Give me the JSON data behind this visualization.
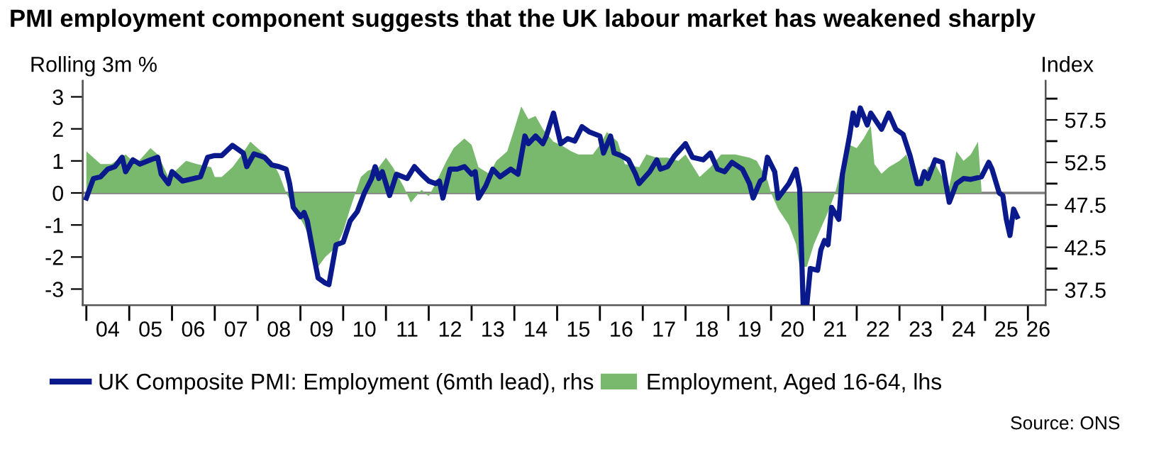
{
  "chart_data": {
    "type": "area",
    "title": "PMI employment component suggests that the UK labour market has weakened sharply",
    "ylabel": "Rolling 3m %",
    "y2label": "Index",
    "annotations": [
      "Source: ONS"
    ],
    "legend": "bottom",
    "grid": false,
    "ref_lines": [
      {
        "axis": "y",
        "value": 0,
        "color": "#808080"
      }
    ],
    "xlim": [
      "2003-12",
      "2026-06"
    ],
    "xticks": [
      {
        "value": "2004-01",
        "label": null
      },
      {
        "value": "2005-01",
        "label": null
      },
      {
        "value": "2006-01",
        "label": null
      },
      {
        "value": "2007-01",
        "label": null
      },
      {
        "value": "2008-01",
        "label": null
      },
      {
        "value": "2009-01",
        "label": null
      },
      {
        "value": "2010-01",
        "label": null
      },
      {
        "value": "2011-01",
        "label": null
      },
      {
        "value": "2012-01",
        "label": null
      },
      {
        "value": "2013-01",
        "label": null
      },
      {
        "value": "2014-01",
        "label": null
      },
      {
        "value": "2015-01",
        "label": null
      },
      {
        "value": "2016-01",
        "label": null
      },
      {
        "value": "2017-01",
        "label": null
      },
      {
        "value": "2018-01",
        "label": null
      },
      {
        "value": "2019-01",
        "label": null
      },
      {
        "value": "2020-01",
        "label": null
      },
      {
        "value": "2021-01",
        "label": null
      },
      {
        "value": "2022-01",
        "label": null
      },
      {
        "value": "2023-01",
        "label": null
      },
      {
        "value": "2024-01",
        "label": null
      },
      {
        "value": "2025-01",
        "label": null
      },
      {
        "value": "2026-01",
        "label": null
      },
      {
        "value": "2004-07",
        "label": "04"
      },
      {
        "value": "2005-07",
        "label": "05"
      },
      {
        "value": "2006-07",
        "label": "06"
      },
      {
        "value": "2007-07",
        "label": "07"
      },
      {
        "value": "2008-07",
        "label": "08"
      },
      {
        "value": "2009-07",
        "label": "09"
      },
      {
        "value": "2010-07",
        "label": "10"
      },
      {
        "value": "2011-07",
        "label": "11"
      },
      {
        "value": "2012-07",
        "label": "12"
      },
      {
        "value": "2013-07",
        "label": "13"
      },
      {
        "value": "2014-07",
        "label": "14"
      },
      {
        "value": "2015-07",
        "label": "15"
      },
      {
        "value": "2016-07",
        "label": "16"
      },
      {
        "value": "2017-07",
        "label": "17"
      },
      {
        "value": "2018-07",
        "label": "18"
      },
      {
        "value": "2019-07",
        "label": "19"
      },
      {
        "value": "2020-07",
        "label": "20"
      },
      {
        "value": "2021-07",
        "label": "21"
      },
      {
        "value": "2022-07",
        "label": "22"
      },
      {
        "value": "2023-07",
        "label": "23"
      },
      {
        "value": "2024-07",
        "label": "24"
      },
      {
        "value": "2025-07",
        "label": "25"
      },
      {
        "value": "2026-04",
        "label": "26"
      }
    ],
    "ylim": [
      -3.5,
      3.5
    ],
    "yticks": [
      -3,
      -2,
      -1,
      0,
      1,
      2,
      3
    ],
    "y2lim": [
      35.7,
      62.1
    ],
    "y2ticks": [
      37.5,
      42.5,
      47.5,
      52.5,
      57.5,
      {
        "value": 40,
        "label": null
      },
      {
        "value": 45,
        "label": null
      },
      {
        "value": 50,
        "label": null
      },
      {
        "value": 55,
        "label": null
      },
      {
        "value": 60,
        "label": null
      }
    ],
    "series": [
      {
        "name": "Employment, Aged 16-64, lhs",
        "color": "#78b96e",
        "x": [
          "2004-01",
          "2004-05",
          "2004-08",
          "2004-12",
          "2005-03",
          "2005-07",
          "2005-09",
          "2005-12",
          "2006-02",
          "2006-05",
          "2006-08",
          "2006-12",
          "2007-01",
          "2007-03",
          "2007-06",
          "2007-08",
          "2007-11",
          "2008-01",
          "2008-05",
          "2008-07",
          "2008-09",
          "2008-12",
          "2009-02",
          "2009-05",
          "2009-06",
          "2009-08",
          "2009-11",
          "2010-01",
          "2010-03",
          "2010-06",
          "2010-08",
          "2010-11",
          "2011-01",
          "2011-03",
          "2011-06",
          "2011-08",
          "2011-11",
          "2012-01",
          "2012-03",
          "2012-06",
          "2012-08",
          "2012-11",
          "2013-01",
          "2013-03",
          "2013-06",
          "2013-08",
          "2013-11",
          "2014-01",
          "2014-03",
          "2014-05",
          "2014-07",
          "2014-09",
          "2014-12",
          "2015-02",
          "2015-05",
          "2015-07",
          "2015-11",
          "2016-01",
          "2016-03",
          "2016-06",
          "2016-08",
          "2016-12",
          "2017-02",
          "2017-05",
          "2017-08",
          "2017-11",
          "2018-01",
          "2018-05",
          "2018-08",
          "2018-11",
          "2019-01",
          "2019-03",
          "2019-07",
          "2019-09",
          "2019-12",
          "2020-01",
          "2020-03",
          "2020-06",
          "2020-08",
          "2020-09",
          "2020-11",
          "2021-01",
          "2021-03",
          "2021-05",
          "2021-07",
          "2021-09",
          "2021-11",
          "2022-01",
          "2022-03",
          "2022-05",
          "2022-06",
          "2022-08",
          "2022-10",
          "2023-01",
          "2023-03",
          "2023-05",
          "2023-07",
          "2023-09",
          "2023-11",
          "2024-01",
          "2024-03",
          "2024-05",
          "2024-07",
          "2024-09",
          "2024-11",
          "2024-12"
        ],
        "values": [
          1.3,
          0.9,
          0.9,
          1.2,
          0.9,
          1.4,
          1.2,
          0.5,
          0.7,
          1.0,
          0.9,
          0.8,
          0.5,
          0.5,
          0.8,
          1.1,
          1.6,
          1.4,
          1.0,
          0.6,
          0.0,
          -0.6,
          -1.0,
          -1.8,
          -2.3,
          -2.0,
          -1.7,
          -1.2,
          -0.5,
          0.5,
          0.7,
          0.8,
          1.1,
          0.8,
          0.2,
          -0.3,
          0.1,
          -0.1,
          0.3,
          1.0,
          1.4,
          1.7,
          1.5,
          0.8,
          0.6,
          1.0,
          1.3,
          2.0,
          2.7,
          2.3,
          2.4,
          2.0,
          1.6,
          1.5,
          1.3,
          1.2,
          1.2,
          1.5,
          1.9,
          1.6,
          0.9,
          0.8,
          1.2,
          1.1,
          1.1,
          1.0,
          1.2,
          0.5,
          0.8,
          1.2,
          1.2,
          1.2,
          1.1,
          1.0,
          0.4,
          0.0,
          -0.5,
          -1.0,
          -1.6,
          -2.3,
          -2.3,
          -1.6,
          -1.1,
          -0.6,
          0.0,
          0.9,
          1.5,
          1.4,
          1.7,
          2.1,
          0.9,
          0.6,
          0.8,
          1.0,
          1.2,
          0.5,
          0.2,
          0.8,
          0.9,
          0.5,
          0.2,
          1.3,
          1.0,
          1.2,
          1.6,
          0.1
        ]
      },
      {
        "name": "UK Composite PMI: Employment (6mth lead), rhs",
        "type": "line",
        "axis": "y2",
        "color": "#0a1a8c",
        "x": [
          "2004-01",
          "2004-03",
          "2004-05",
          "2004-07",
          "2004-09",
          "2004-11",
          "2004-12",
          "2005-02",
          "2005-04",
          "2005-07",
          "2005-09",
          "2005-10",
          "2005-12",
          "2006-01",
          "2006-04",
          "2006-07",
          "2006-09",
          "2006-11",
          "2007-01",
          "2007-03",
          "2007-06",
          "2007-09",
          "2007-10",
          "2007-12",
          "2008-03",
          "2008-05",
          "2008-07",
          "2008-09",
          "2008-10",
          "2008-11",
          "2009-01",
          "2009-02",
          "2009-03",
          "2009-04",
          "2009-05",
          "2009-06",
          "2009-08",
          "2009-09",
          "2009-11",
          "2010-01",
          "2010-03",
          "2010-05",
          "2010-07",
          "2010-09",
          "2010-10",
          "2010-11",
          "2010-12",
          "2011-02",
          "2011-04",
          "2011-07",
          "2011-09",
          "2011-11",
          "2012-01",
          "2012-03",
          "2012-04",
          "2012-05",
          "2012-07",
          "2012-09",
          "2012-11",
          "2013-01",
          "2013-02",
          "2013-03",
          "2013-05",
          "2013-07",
          "2013-09",
          "2013-12",
          "2014-02",
          "2014-04",
          "2014-05",
          "2014-07",
          "2014-09",
          "2014-10",
          "2014-12",
          "2015-02",
          "2015-04",
          "2015-06",
          "2015-08",
          "2015-10",
          "2016-01",
          "2016-02",
          "2016-04",
          "2016-05",
          "2016-07",
          "2016-09",
          "2016-11",
          "2016-12",
          "2017-03",
          "2017-05",
          "2017-06",
          "2017-08",
          "2017-10",
          "2018-01",
          "2018-03",
          "2018-06",
          "2018-08",
          "2018-10",
          "2018-12",
          "2019-02",
          "2019-05",
          "2019-07",
          "2019-08",
          "2019-10",
          "2019-11",
          "2019-12",
          "2020-02",
          "2020-03",
          "2020-06",
          "2020-08",
          "2020-09",
          "2020-10",
          "2020-11",
          "2020-12",
          "2021-02",
          "2021-03",
          "2021-04",
          "2021-05",
          "2021-06",
          "2021-08",
          "2021-09",
          "2021-11",
          "2021-12",
          "2022-01",
          "2022-02",
          "2022-04",
          "2022-05",
          "2022-08",
          "2022-10",
          "2022-12",
          "2023-02",
          "2023-04",
          "2023-06",
          "2023-07",
          "2023-08",
          "2023-09",
          "2023-11",
          "2024-01",
          "2024-02",
          "2024-03",
          "2024-05",
          "2024-07",
          "2024-09",
          "2024-12",
          "2025-02",
          "2025-03",
          "2025-05",
          "2025-06",
          "2025-07",
          "2025-08",
          "2025-09",
          "2025-10"
        ],
        "values": [
          48.3,
          50.6,
          50.8,
          51.7,
          52.0,
          53.1,
          51.4,
          52.8,
          52.3,
          52.8,
          53.1,
          51.1,
          50.0,
          51.4,
          50.3,
          50.6,
          50.8,
          53.1,
          53.3,
          53.3,
          54.5,
          53.6,
          52.0,
          53.5,
          53.1,
          52.2,
          52.0,
          51.7,
          50.0,
          47.2,
          46.1,
          46.6,
          45.6,
          43.3,
          41.1,
          38.9,
          38.3,
          38.1,
          42.8,
          43.1,
          45.6,
          46.7,
          48.9,
          50.6,
          52.0,
          50.6,
          51.4,
          48.6,
          51.1,
          50.6,
          52.0,
          51.1,
          50.3,
          50.0,
          50.3,
          48.3,
          51.7,
          51.7,
          52.0,
          51.1,
          51.4,
          48.3,
          49.7,
          51.7,
          50.8,
          51.7,
          51.1,
          55.6,
          54.7,
          55.6,
          54.7,
          55.6,
          58.3,
          54.7,
          55.3,
          55.0,
          56.7,
          56.1,
          55.6,
          53.6,
          55.6,
          53.6,
          53.3,
          52.8,
          51.1,
          50.0,
          51.4,
          52.8,
          51.7,
          52.0,
          53.3,
          54.7,
          53.1,
          52.8,
          53.6,
          51.7,
          51.4,
          52.5,
          51.7,
          50.0,
          48.3,
          50.3,
          50.6,
          53.1,
          51.4,
          48.3,
          50.0,
          51.7,
          49.4,
          35.7,
          35.7,
          40.0,
          39.8,
          42.2,
          43.3,
          42.8,
          47.2,
          45.8,
          51.1,
          55.6,
          58.3,
          56.9,
          58.9,
          56.9,
          58.3,
          56.4,
          58.3,
          56.4,
          55.8,
          53.3,
          50.0,
          50.0,
          51.4,
          50.6,
          52.8,
          52.5,
          50.0,
          47.8,
          50.0,
          50.6,
          50.5,
          50.8,
          52.5,
          51.7,
          48.9,
          48.6,
          45.8,
          43.9,
          47.0,
          46.1
        ]
      }
    ]
  }
}
